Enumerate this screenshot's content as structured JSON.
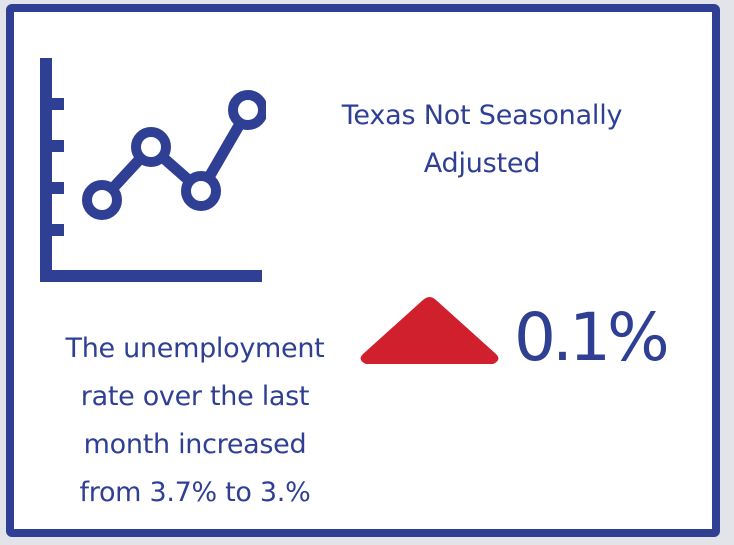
{
  "card": {
    "title_line1": "Texas Not Seasonally",
    "title_line2": "Adjusted",
    "description": [
      "The unemployment",
      "rate over the last",
      "month increased",
      "from 3.7% to 3.%"
    ],
    "change_value": "0.1%",
    "change_direction": "up"
  },
  "icons": {
    "chart": "line-chart-icon",
    "arrow": "up-triangle-icon"
  },
  "colors": {
    "primary": "#2e3f94",
    "accent": "#d0202e",
    "background": "#ffffff"
  }
}
